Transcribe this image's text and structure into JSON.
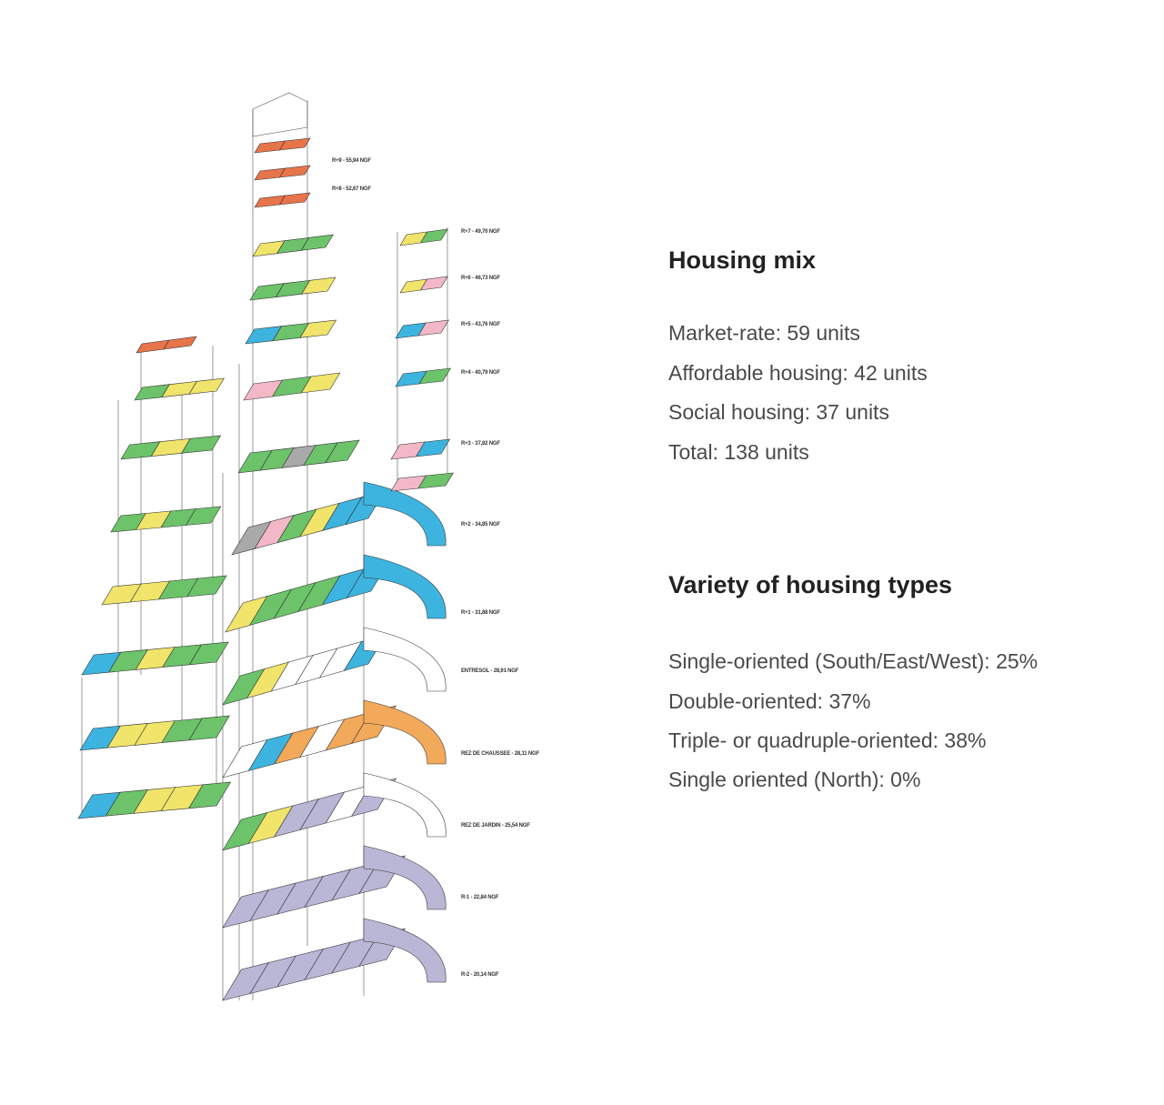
{
  "diagram": {
    "palette": {
      "market": "#6cc36a",
      "affordable": "#f0e46a",
      "social": "#f2b8c8",
      "duplex": "#3db4e0",
      "top": "#e8744a",
      "commercial": "#f2a95a",
      "parking": "#b9b6d6",
      "empty": "#ffffff",
      "grey": "#a9a9a9",
      "stroke": "#333333"
    },
    "levels": [
      "R+9 - 55,94 NGF",
      "R+8 - 52,67 NGF",
      "R+7 - 49,70 NGF",
      "R+6 - 46,73 NGF",
      "R+5 - 43,76 NGF",
      "R+4 - 40,79 NGF",
      "R+3 - 37,82 NGF",
      "R+2 - 34,85 NGF",
      "R+1 - 31,88 NGF",
      "ENTRESOL - 28,91 NGF",
      "REZ DE CHAUSSEE - 28,11 NGF",
      "REZ DE JARDIN - 25,54 NGF",
      "R-1 - 22,84 NGF",
      "R-2 - 20,14 NGF"
    ]
  },
  "housing_mix": {
    "title": "Housing mix",
    "items": [
      "Market-rate: 59 units",
      "Affordable housing: 42 units",
      "Social housing: 37 units",
      "Total: 138 units"
    ]
  },
  "housing_types": {
    "title": "Variety of housing types",
    "items": [
      "Single-oriented (South/East/West): 25%",
      "Double-oriented: 37%",
      "Triple- or quadruple-oriented: 38%",
      "Single oriented (North): 0%"
    ]
  }
}
